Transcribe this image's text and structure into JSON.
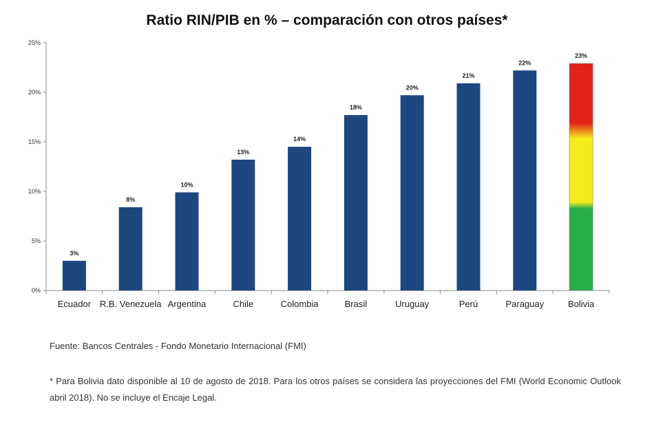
{
  "chart_data": {
    "type": "bar",
    "title": "Ratio RIN/PIB en % – comparación con otros países*",
    "categories": [
      "Ecuador",
      "R.B. Venezuela",
      "Argentina",
      "Chile",
      "Colombia",
      "Brasil",
      "Uruguay",
      "Perú",
      "Paraguay",
      "Bolivia"
    ],
    "values": [
      3,
      8.4,
      9.9,
      13.2,
      14.5,
      17.7,
      19.7,
      20.9,
      22.2,
      22.9
    ],
    "data_labels": [
      "3%",
      "8%",
      "10%",
      "13%",
      "14%",
      "18%",
      "20%",
      "21%",
      "22%",
      "23%"
    ],
    "yticks": [
      "0%",
      "5%",
      "10%",
      "15%",
      "20%",
      "25%"
    ],
    "ylim": [
      0,
      25
    ],
    "grid": false,
    "bar_color": "#1f477f",
    "highlight": {
      "category": "Bolivia",
      "colors": [
        "#e32119",
        "#f5ec1c",
        "#26ae4a"
      ]
    }
  },
  "footnotes": {
    "source": "Fuente: Bancos Centrales - Fondo Monetario Internacional (FMI)",
    "note": "* Para Bolivia dato disponible al 10 de agosto de 2018. Para los otros países se considera las proyecciones del FMI (World Economic Outlook abril 2018). No se incluye el Encaje Legal."
  }
}
